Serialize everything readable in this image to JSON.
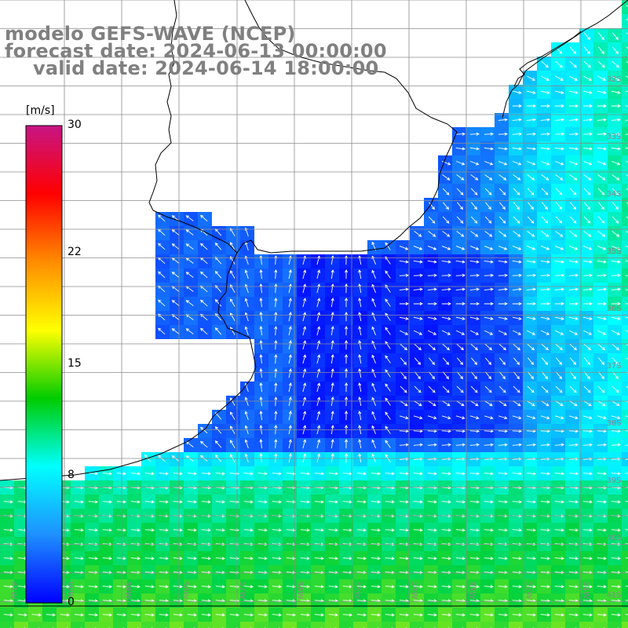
{
  "header": {
    "line1": "modelo GEFS-WAVE (NCEP)",
    "line2": "forecast date: 2024-06-13 00:00:00",
    "line3": "valid date: 2024-06-14 18:00:00"
  },
  "colorbar": {
    "unit": "[m/s]",
    "ticks": [
      {
        "label": "30",
        "value": 30
      },
      {
        "label": "22",
        "value": 22
      },
      {
        "label": "15",
        "value": 15
      },
      {
        "label": "8",
        "value": 8
      },
      {
        "label": "0",
        "value": 0
      }
    ],
    "colors": [
      "#0000ff",
      "#1e90ff",
      "#00ffff",
      "#00cc00",
      "#ffff00",
      "#ff8c00",
      "#ff0000",
      "#c71585"
    ]
  },
  "grid": {
    "lat_labels": [
      "32S",
      "33S",
      "34S",
      "35S",
      "36S",
      "37S",
      "38S",
      "39S",
      "40S",
      "41S"
    ],
    "lon_labels": [
      "61W",
      "60W",
      "59W",
      "58W",
      "57W",
      "56W",
      "55W",
      "54W",
      "53W",
      "52W",
      "51W"
    ]
  },
  "colors": {
    "land": "#ffffff",
    "coast": "#000000",
    "grid": "#8c8c8c",
    "arrow": "#ffffff",
    "title": "#808080"
  }
}
